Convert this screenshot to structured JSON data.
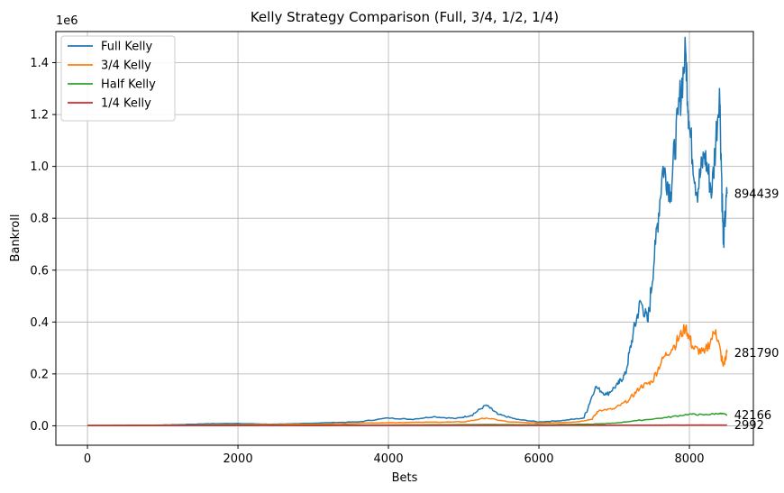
{
  "chart_data": {
    "type": "line",
    "title": "Kelly Strategy Comparison (Full, 3/4, 1/2, 1/4)",
    "xlabel": "Bets",
    "ylabel": "Bankroll",
    "offset_label": "1e6",
    "xlim": [
      -420,
      8850
    ],
    "ylim": [
      -75000,
      1520000
    ],
    "xticks": [
      0,
      2000,
      4000,
      6000,
      8000
    ],
    "xtick_labels": [
      "0",
      "2000",
      "4000",
      "6000",
      "8000"
    ],
    "yticks": [
      0,
      200000,
      400000,
      600000,
      800000,
      1000000,
      1200000,
      1400000
    ],
    "ytick_labels": [
      "0.0",
      "0.2",
      "0.4",
      "0.6",
      "0.8",
      "1.0",
      "1.2",
      "1.4"
    ],
    "grid": true,
    "legend_position": "top-left",
    "series": [
      {
        "name": "Full Kelly",
        "color": "#1f77b4",
        "end_label": "894439",
        "points": [
          [
            0,
            1000
          ],
          [
            500,
            1500
          ],
          [
            1000,
            3000
          ],
          [
            1300,
            5000
          ],
          [
            1600,
            8000
          ],
          [
            2000,
            9000
          ],
          [
            2400,
            6000
          ],
          [
            2800,
            8000
          ],
          [
            3200,
            12000
          ],
          [
            3600,
            15000
          ],
          [
            4000,
            30000
          ],
          [
            4300,
            25000
          ],
          [
            4600,
            35000
          ],
          [
            4900,
            28000
          ],
          [
            5100,
            40000
          ],
          [
            5300,
            80000
          ],
          [
            5450,
            45000
          ],
          [
            5700,
            25000
          ],
          [
            6000,
            15000
          ],
          [
            6300,
            20000
          ],
          [
            6600,
            30000
          ],
          [
            6750,
            150000
          ],
          [
            6900,
            120000
          ],
          [
            7050,
            160000
          ],
          [
            7150,
            200000
          ],
          [
            7250,
            350000
          ],
          [
            7350,
            480000
          ],
          [
            7450,
            400000
          ],
          [
            7550,
            700000
          ],
          [
            7650,
            1000000
          ],
          [
            7750,
            900000
          ],
          [
            7850,
            1200000
          ],
          [
            7950,
            1440000
          ],
          [
            8000,
            1150000
          ],
          [
            8100,
            900000
          ],
          [
            8200,
            1050000
          ],
          [
            8300,
            900000
          ],
          [
            8400,
            1300000
          ],
          [
            8450,
            700000
          ],
          [
            8500,
            894439
          ]
        ]
      },
      {
        "name": "3/4 Kelly",
        "color": "#ff7f0e",
        "end_label": "281790",
        "points": [
          [
            0,
            1000
          ],
          [
            1000,
            2000
          ],
          [
            2000,
            4000
          ],
          [
            3000,
            6000
          ],
          [
            4000,
            12000
          ],
          [
            4600,
            14000
          ],
          [
            5000,
            15000
          ],
          [
            5300,
            30000
          ],
          [
            5600,
            15000
          ],
          [
            6000,
            10000
          ],
          [
            6500,
            15000
          ],
          [
            6700,
            25000
          ],
          [
            6800,
            60000
          ],
          [
            7000,
            65000
          ],
          [
            7200,
            100000
          ],
          [
            7350,
            150000
          ],
          [
            7500,
            170000
          ],
          [
            7650,
            260000
          ],
          [
            7800,
            310000
          ],
          [
            7950,
            380000
          ],
          [
            8050,
            300000
          ],
          [
            8200,
            280000
          ],
          [
            8350,
            370000
          ],
          [
            8450,
            230000
          ],
          [
            8500,
            281790
          ]
        ]
      },
      {
        "name": "Half Kelly",
        "color": "#2ca02c",
        "end_label": "42166",
        "points": [
          [
            0,
            1000
          ],
          [
            2000,
            2000
          ],
          [
            4000,
            3000
          ],
          [
            5300,
            5000
          ],
          [
            6000,
            4000
          ],
          [
            6700,
            6000
          ],
          [
            7000,
            10000
          ],
          [
            7300,
            20000
          ],
          [
            7700,
            32000
          ],
          [
            8000,
            45000
          ],
          [
            8200,
            42000
          ],
          [
            8400,
            48000
          ],
          [
            8500,
            42166
          ]
        ]
      },
      {
        "name": "1/4 Kelly",
        "color": "#d62728",
        "end_label": "2992",
        "points": [
          [
            0,
            1000
          ],
          [
            2000,
            1200
          ],
          [
            4000,
            1400
          ],
          [
            6000,
            1500
          ],
          [
            7000,
            2000
          ],
          [
            8000,
            2800
          ],
          [
            8500,
            2992
          ]
        ]
      }
    ]
  }
}
